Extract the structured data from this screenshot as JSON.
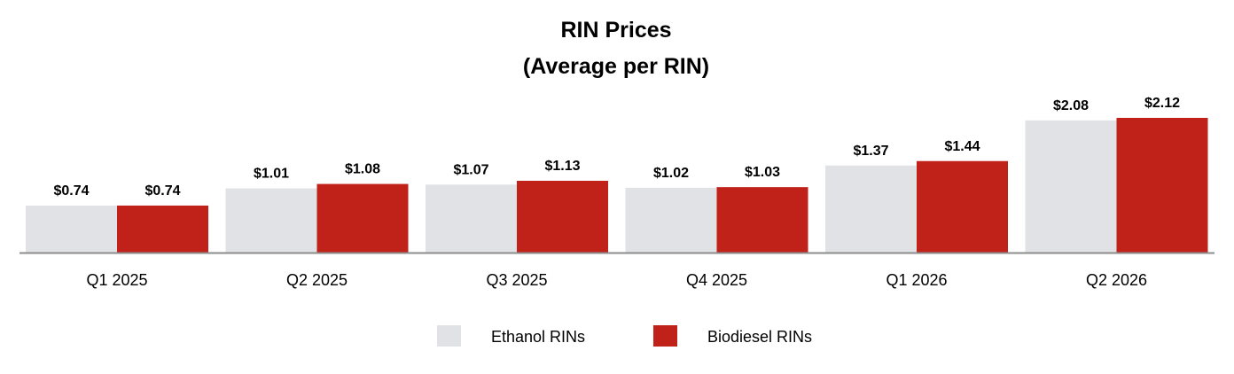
{
  "chart_data": {
    "type": "bar",
    "title": "RIN Prices",
    "subtitle": "(Average per RIN)",
    "categories": [
      "Q1 2025",
      "Q2 2025",
      "Q3 2025",
      "Q4 2025",
      "Q1 2026",
      "Q2 2026"
    ],
    "series": [
      {
        "name": "Ethanol RINs",
        "color": "#e1e2e6",
        "values": [
          0.74,
          1.01,
          1.07,
          1.02,
          1.37,
          2.08
        ],
        "labels": [
          "$0.74",
          "$1.01",
          "$1.07",
          "$1.02",
          "$1.37",
          "$2.08"
        ]
      },
      {
        "name": "Biodiesel RINs",
        "color": "#c0221a",
        "values": [
          0.74,
          1.08,
          1.13,
          1.03,
          1.44,
          2.12
        ],
        "labels": [
          "$0.74",
          "$1.08",
          "$1.13",
          "$1.03",
          "$1.44",
          "$2.12"
        ]
      }
    ],
    "ylim": [
      0,
      2.12
    ],
    "grid": false,
    "legend": "bottom"
  }
}
